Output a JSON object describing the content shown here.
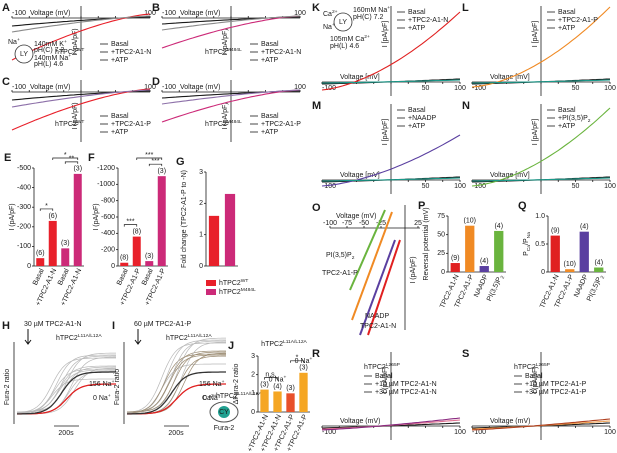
{
  "panels": {
    "A": {
      "letter": "A",
      "xlabel": "Voltage (mV)",
      "xticks": [
        "-100",
        "100"
      ],
      "ylabel": "I (pA/pF)",
      "construct": {
        "text": "hTPC2",
        "sup": "WT"
      },
      "construct_color": "#e8202a",
      "legend": [
        {
          "name": "Basal",
          "color": "#1a1a1a"
        },
        {
          "name": "+TPC2-A1-N",
          "color": "#e8202a"
        },
        {
          "name": "+ATP",
          "color": "#8a8a8a"
        }
      ],
      "inset": [
        {
          "text": "140mM K",
          "sup": "+"
        },
        "pH(C) 7.2",
        {
          "text": "140mM Na",
          "sup": "+"
        },
        "pH(L) 4.6",
        {
          "text": "Na",
          "sup": "+"
        },
        "LY"
      ]
    },
    "B": {
      "letter": "B",
      "xlabel": "Voltage (mV)",
      "xticks": [
        "-100",
        "100"
      ],
      "ylabel": "I (pA/pF)",
      "construct": {
        "text": "hTPC2",
        "sup": "M484L"
      },
      "construct_color": "#cc2a78",
      "legend": [
        {
          "name": "Basal",
          "color": "#1a1a1a"
        },
        {
          "name": "+TPC2-A1-N",
          "color": "#cc2a78"
        },
        {
          "name": "+ATP",
          "color": "#8a8a8a"
        }
      ]
    },
    "C": {
      "letter": "C",
      "xlabel": "Voltage (mV)",
      "xticks": [
        "-100",
        "100"
      ],
      "ylabel": "I (pA/pF)",
      "construct": {
        "text": "hTPC2",
        "sup": "WT"
      },
      "construct_color": "#e8202a",
      "legend": [
        {
          "name": "Basal",
          "color": "#1a1a1a"
        },
        {
          "name": "+TPC2-A1-P",
          "color": "#e8202a"
        },
        {
          "name": "+ATP",
          "color": "#8c6fa8"
        }
      ]
    },
    "D": {
      "letter": "D",
      "xlabel": "Voltage (mV)",
      "xticks": [
        "-100",
        "100"
      ],
      "ylabel": "I (pA/pF)",
      "construct": {
        "text": "hTPC2",
        "sup": "M484L"
      },
      "construct_color": "#cc2a78",
      "legend": [
        {
          "name": "Basal",
          "color": "#1a1a1a"
        },
        {
          "name": "+TPC2-A1-P",
          "color": "#cc2a78"
        },
        {
          "name": "+ATP",
          "color": "#8c6fa8"
        }
      ]
    },
    "K": {
      "letter": "K",
      "xlabel": "Voltage [mV]",
      "xticks": [
        "-100",
        "50",
        "100"
      ],
      "ylabel": "I [pA/pF]",
      "legend": [
        {
          "name": "Basal",
          "color": "#1a1a1a"
        },
        {
          "name": "+TPC2-A1-N",
          "color": "#e02020"
        },
        {
          "name": "+ATP",
          "color": "#1a9a8a"
        }
      ],
      "inset": [
        {
          "text": "Ca",
          "sup": "2+"
        },
        {
          "text": "Na",
          "sup": "+"
        },
        "LY",
        {
          "text": "160mM Na",
          "sup": "+"
        },
        "pH(C) 7.2",
        {
          "text": "105mM Ca",
          "sup": "2+"
        },
        "pH(L) 4.6"
      ]
    },
    "L": {
      "letter": "L",
      "xlabel": "Voltage [mV]",
      "xticks": [
        "-100",
        "50",
        "100"
      ],
      "ylabel": "I [pA/pF]",
      "legend": [
        {
          "name": "Basal",
          "color": "#1a1a1a"
        },
        {
          "name": "+TPC2-A1-P",
          "color": "#f08a24"
        },
        {
          "name": "+ATP",
          "color": "#1a9a8a"
        }
      ]
    },
    "M": {
      "letter": "M",
      "xlabel": "Voltage [mV]",
      "xticks": [
        "-100",
        "50",
        "100"
      ],
      "ylabel": "I [pA/pF]",
      "legend": [
        {
          "name": "Basal",
          "color": "#1a1a1a"
        },
        {
          "name": "+NAADP",
          "color": "#5a3fa0"
        },
        {
          "name": "+ATP",
          "color": "#1a9a8a"
        }
      ]
    },
    "N": {
      "letter": "N",
      "xlabel": "Voltage [mV]",
      "xticks": [
        "-100",
        "50",
        "100"
      ],
      "ylabel": "I [pA/pF]",
      "legend": [
        {
          "name": "Basal",
          "color": "#1a1a1a"
        },
        {
          "name": {
            "text": "+PI(3,5)P",
            "sub": "2"
          },
          "color": "#6ab43e"
        },
        {
          "name": "+ATP",
          "color": "#1a9a8a"
        }
      ]
    },
    "R": {
      "letter": "R",
      "xlabel": "Voltage (mV)",
      "xticks": [
        "-100",
        "100"
      ],
      "ylabel": "I (pA/pF)",
      "construct": {
        "text": "hTPC2",
        "sup": "L265P"
      },
      "construct_color": "#1a1a1a",
      "legend": [
        {
          "name": "Basal",
          "color": "#1a1a1a"
        },
        {
          "name": "+10 µM TPC2-A1-N",
          "color": "#e07090"
        },
        {
          "name": "+30 µM TPC2-A1-N",
          "color": "#8a2a80"
        }
      ]
    },
    "S": {
      "letter": "S",
      "xlabel": "Voltage (mV)",
      "xticks": [
        "-100",
        "100"
      ],
      "ylabel": "I (pA/pF)",
      "construct": {
        "text": "hTPC2",
        "sup": "L265P"
      },
      "construct_color": "#1a1a1a",
      "legend": [
        {
          "name": "Basal",
          "color": "#1a1a1a"
        },
        {
          "name": "+10 µM TPC2-A1-P",
          "color": "#f0a050"
        },
        {
          "name": "+30 µM TPC2-A1-P",
          "color": "#b04020"
        }
      ]
    },
    "H": {
      "letter": "H",
      "stimulus": "30 µM TPC2-A1-N",
      "construct": {
        "text": "hTPC2",
        "sup": "L11A/L12A"
      },
      "labels": [
        {
          "text": "156 Na",
          "sup": "+"
        },
        {
          "text": "0 Na",
          "sup": "+"
        }
      ],
      "ylabel": "Fura-2 ratio",
      "scale": "200s"
    },
    "I": {
      "letter": "I",
      "stimulus": "60 µM TPC2-A1-P",
      "construct": {
        "text": "hTPC2",
        "sup": "L11A/L12A"
      },
      "labels": [
        {
          "text": "156 Na",
          "sup": "+"
        },
        {
          "text": "0 Na",
          "sup": "+"
        }
      ],
      "ylabel": "Fura-2 ratio",
      "scale": "200s",
      "cell": [
        {
          "text": "Ca",
          "sup": "2+"
        },
        {
          "text": "hTPC2",
          "sup": "L11A/L12A"
        },
        "CY",
        "Fura-2"
      ]
    },
    "O": {
      "letter": "O",
      "xlabel": "Voltage (mV)",
      "xticks": [
        "-100",
        "-75",
        "-50",
        "-25",
        "25"
      ],
      "ylabel": "I (pA/pF)",
      "curves": [
        {
          "name": {
            "text": "PI(3,5)P",
            "sub": "2"
          },
          "color": "#6ab43e"
        },
        {
          "name": "TPC2-A1-P",
          "color": "#f08a24"
        },
        {
          "name": "NAADP",
          "color": "#5a3fa0"
        },
        {
          "name": "TPC2-A1-N",
          "color": "#e02020"
        }
      ]
    }
  },
  "chart_data": [
    {
      "type": "bar",
      "letter": "E",
      "ylabel": "I (pA/pF)",
      "categories": [
        "Basal",
        "+TPC2-A1-N",
        "Basal",
        "+TPC2-A1-N"
      ],
      "values": [
        -40,
        -230,
        -90,
        -470
      ],
      "colors": [
        "#e8202a",
        "#e8202a",
        "#cc2a78",
        "#cc2a78"
      ],
      "n_labels": [
        "(6)",
        "(6)",
        "(3)",
        "(3)"
      ],
      "significance": [
        "*",
        "**",
        "*"
      ],
      "ylim": [
        0,
        -500
      ],
      "yticks": [
        0,
        -100,
        -200,
        -300,
        -400,
        -500
      ]
    },
    {
      "type": "bar",
      "letter": "F",
      "ylabel": "I (pA/pF)",
      "categories": [
        "Basal",
        "+TPC2-A1-P",
        "Basal",
        "+TPC2-A1-P"
      ],
      "values": [
        -40,
        -360,
        -60,
        -1100
      ],
      "colors": [
        "#e8202a",
        "#e8202a",
        "#cc2a78",
        "#cc2a78"
      ],
      "n_labels": [
        "(8)",
        "(8)",
        "(3)",
        "(3)"
      ],
      "significance": [
        "***",
        "***",
        "***"
      ],
      "ylim": [
        0,
        -1200
      ],
      "yticks": [
        0,
        -200,
        -400,
        -600,
        -800,
        -1000,
        -1200
      ]
    },
    {
      "type": "bar",
      "letter": "G",
      "ylabel": "Fold change (TPC2-A1-P to -N)",
      "categories": [
        null,
        null
      ],
      "values": [
        1.6,
        2.3
      ],
      "colors": [
        "#e8202a",
        "#cc2a78"
      ],
      "legend": [
        {
          "text": "hTPC2",
          "sup": "WT"
        },
        {
          "text": "hTPC2",
          "sup": "M484L"
        }
      ],
      "ylim": [
        0,
        3
      ],
      "yticks": [
        0,
        1,
        2,
        3
      ]
    },
    {
      "type": "bar",
      "letter": "J",
      "title": {
        "text": "hTPC2",
        "sup": "L11A/L12A"
      },
      "ylabel": "ΔFura-2 ratio",
      "categories": [
        "+TPC2-A1-N",
        "+TPC2-A1-N",
        "+TPC2-A1-P",
        "+TPC2-A1-P"
      ],
      "values": [
        1.2,
        1.1,
        1.0,
        2.1
      ],
      "colors": [
        "#f5a623",
        "#f5a623",
        "#e8502a",
        "#f5a623"
      ],
      "n_labels": [
        "(3)",
        "(4)",
        "(3)",
        "(3)"
      ],
      "bar_notes": [
        null,
        {
          "text": "0 Na",
          "sup": "+"
        },
        null,
        {
          "text": "0 Na",
          "sup": "+"
        }
      ],
      "significance": [
        "n.s.",
        "*"
      ],
      "ylim": [
        0,
        3
      ],
      "yticks": [
        0,
        1,
        2,
        3
      ]
    },
    {
      "type": "bar",
      "letter": "P",
      "ylabel": "Reversal potential (mV)",
      "categories": [
        "TPC2-A1-N",
        "TPC2-A1-P",
        "NAADP",
        {
          "text": "PI(3,5)P",
          "sub": "2"
        }
      ],
      "values": [
        12,
        62,
        8,
        55
      ],
      "colors": [
        "#e02020",
        "#f08a24",
        "#5a3fa0",
        "#6ab43e"
      ],
      "colored_labels": true,
      "n_labels": [
        "(9)",
        "(10)",
        "(4)",
        "(4)"
      ],
      "ylim": [
        0,
        75
      ],
      "yticks": [
        0,
        25,
        50,
        75
      ]
    },
    {
      "type": "bar",
      "letter": "Q",
      "ylabel": {
        "text": "P",
        "sub": "Ca",
        "text2": "/P",
        "sub2": "Na"
      },
      "categories": [
        "TPC2-A1-N",
        "TPC2-A1-P",
        "NAADP",
        {
          "text": "PI(3,5)P",
          "sub": "2"
        }
      ],
      "values": [
        0.65,
        0.05,
        0.72,
        0.08
      ],
      "colors": [
        "#e02020",
        "#f08a24",
        "#5a3fa0",
        "#6ab43e"
      ],
      "colored_labels": true,
      "n_labels": [
        "(9)",
        "(10)",
        "(4)",
        "(4)"
      ],
      "ylim": [
        0,
        1
      ],
      "yticks": [
        0,
        0.5,
        {
          "value": 1,
          "label": "1.0"
        }
      ]
    }
  ]
}
